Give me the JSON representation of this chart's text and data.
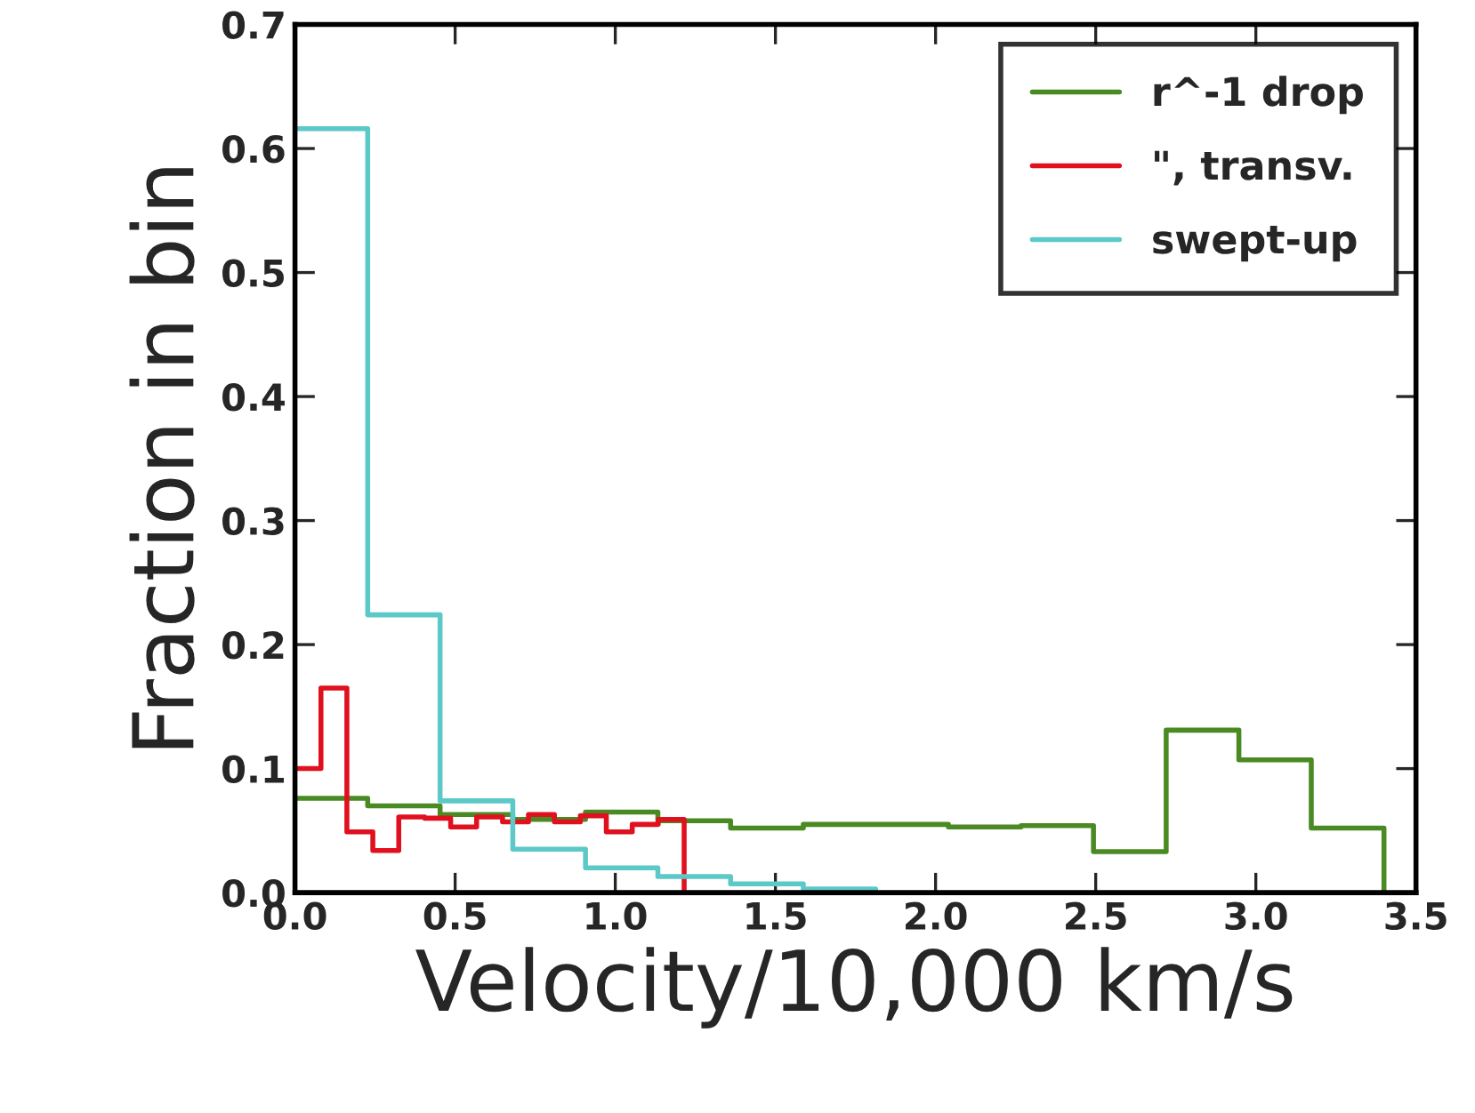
{
  "chart_data": {
    "type": "step",
    "xlabel": "Velocity/10,000 km/s",
    "ylabel": "Fraction in bin",
    "xlim": [
      0.0,
      3.5
    ],
    "xticks": [
      {
        "value": 0.0,
        "label": "0.0"
      },
      0.5,
      {
        "value": 1.0,
        "label": "1.0"
      },
      1.5,
      {
        "value": 2.0,
        "label": "2.0"
      },
      2.5,
      {
        "value": 3.0,
        "label": "3.0"
      },
      3.5
    ],
    "ylim": [
      0.0,
      0.7
    ],
    "yticks": [
      {
        "value": 0.0,
        "label": "0.0"
      },
      0.1,
      0.2,
      0.3,
      0.4,
      0.5,
      0.6,
      0.7
    ],
    "grid": false,
    "legend": "top right",
    "line_style": "solid",
    "marker": "none",
    "series": [
      {
        "name": "r^-1 drop",
        "color": "#4a8a22",
        "x": [
          0,
          0.227,
          0.453,
          0.68,
          0.907,
          1.133,
          1.36,
          1.587,
          1.813,
          2.04,
          2.267,
          2.493,
          2.72,
          2.947,
          3.173,
          3.4
        ],
        "values": [
          0.076,
          0.07,
          0.063,
          0.059,
          0.065,
          0.058,
          0.052,
          0.055,
          0.055,
          0.053,
          0.054,
          0.033,
          0.131,
          0.107,
          0.052,
          0
        ]
      },
      {
        "name": "\", transv.",
        "color": "#e0101e",
        "x": [
          0,
          0.081,
          0.162,
          0.243,
          0.324,
          0.405,
          0.486,
          0.567,
          0.648,
          0.729,
          0.81,
          0.891,
          0.972,
          1.053,
          1.134,
          1.215
        ],
        "values": [
          0.1,
          0.165,
          0.049,
          0.034,
          0.061,
          0.06,
          0.053,
          0.061,
          0.057,
          0.063,
          0.057,
          0.062,
          0.049,
          0.055,
          0.059,
          0
        ]
      },
      {
        "name": "swept-up",
        "color": "#5cc8c8",
        "x": [
          0,
          0.227,
          0.453,
          0.68,
          0.907,
          1.133,
          1.36,
          1.587,
          1.813
        ],
        "values": [
          0.616,
          0.224,
          0.074,
          0.035,
          0.02,
          0.013,
          0.007,
          0.003,
          0
        ]
      }
    ]
  }
}
